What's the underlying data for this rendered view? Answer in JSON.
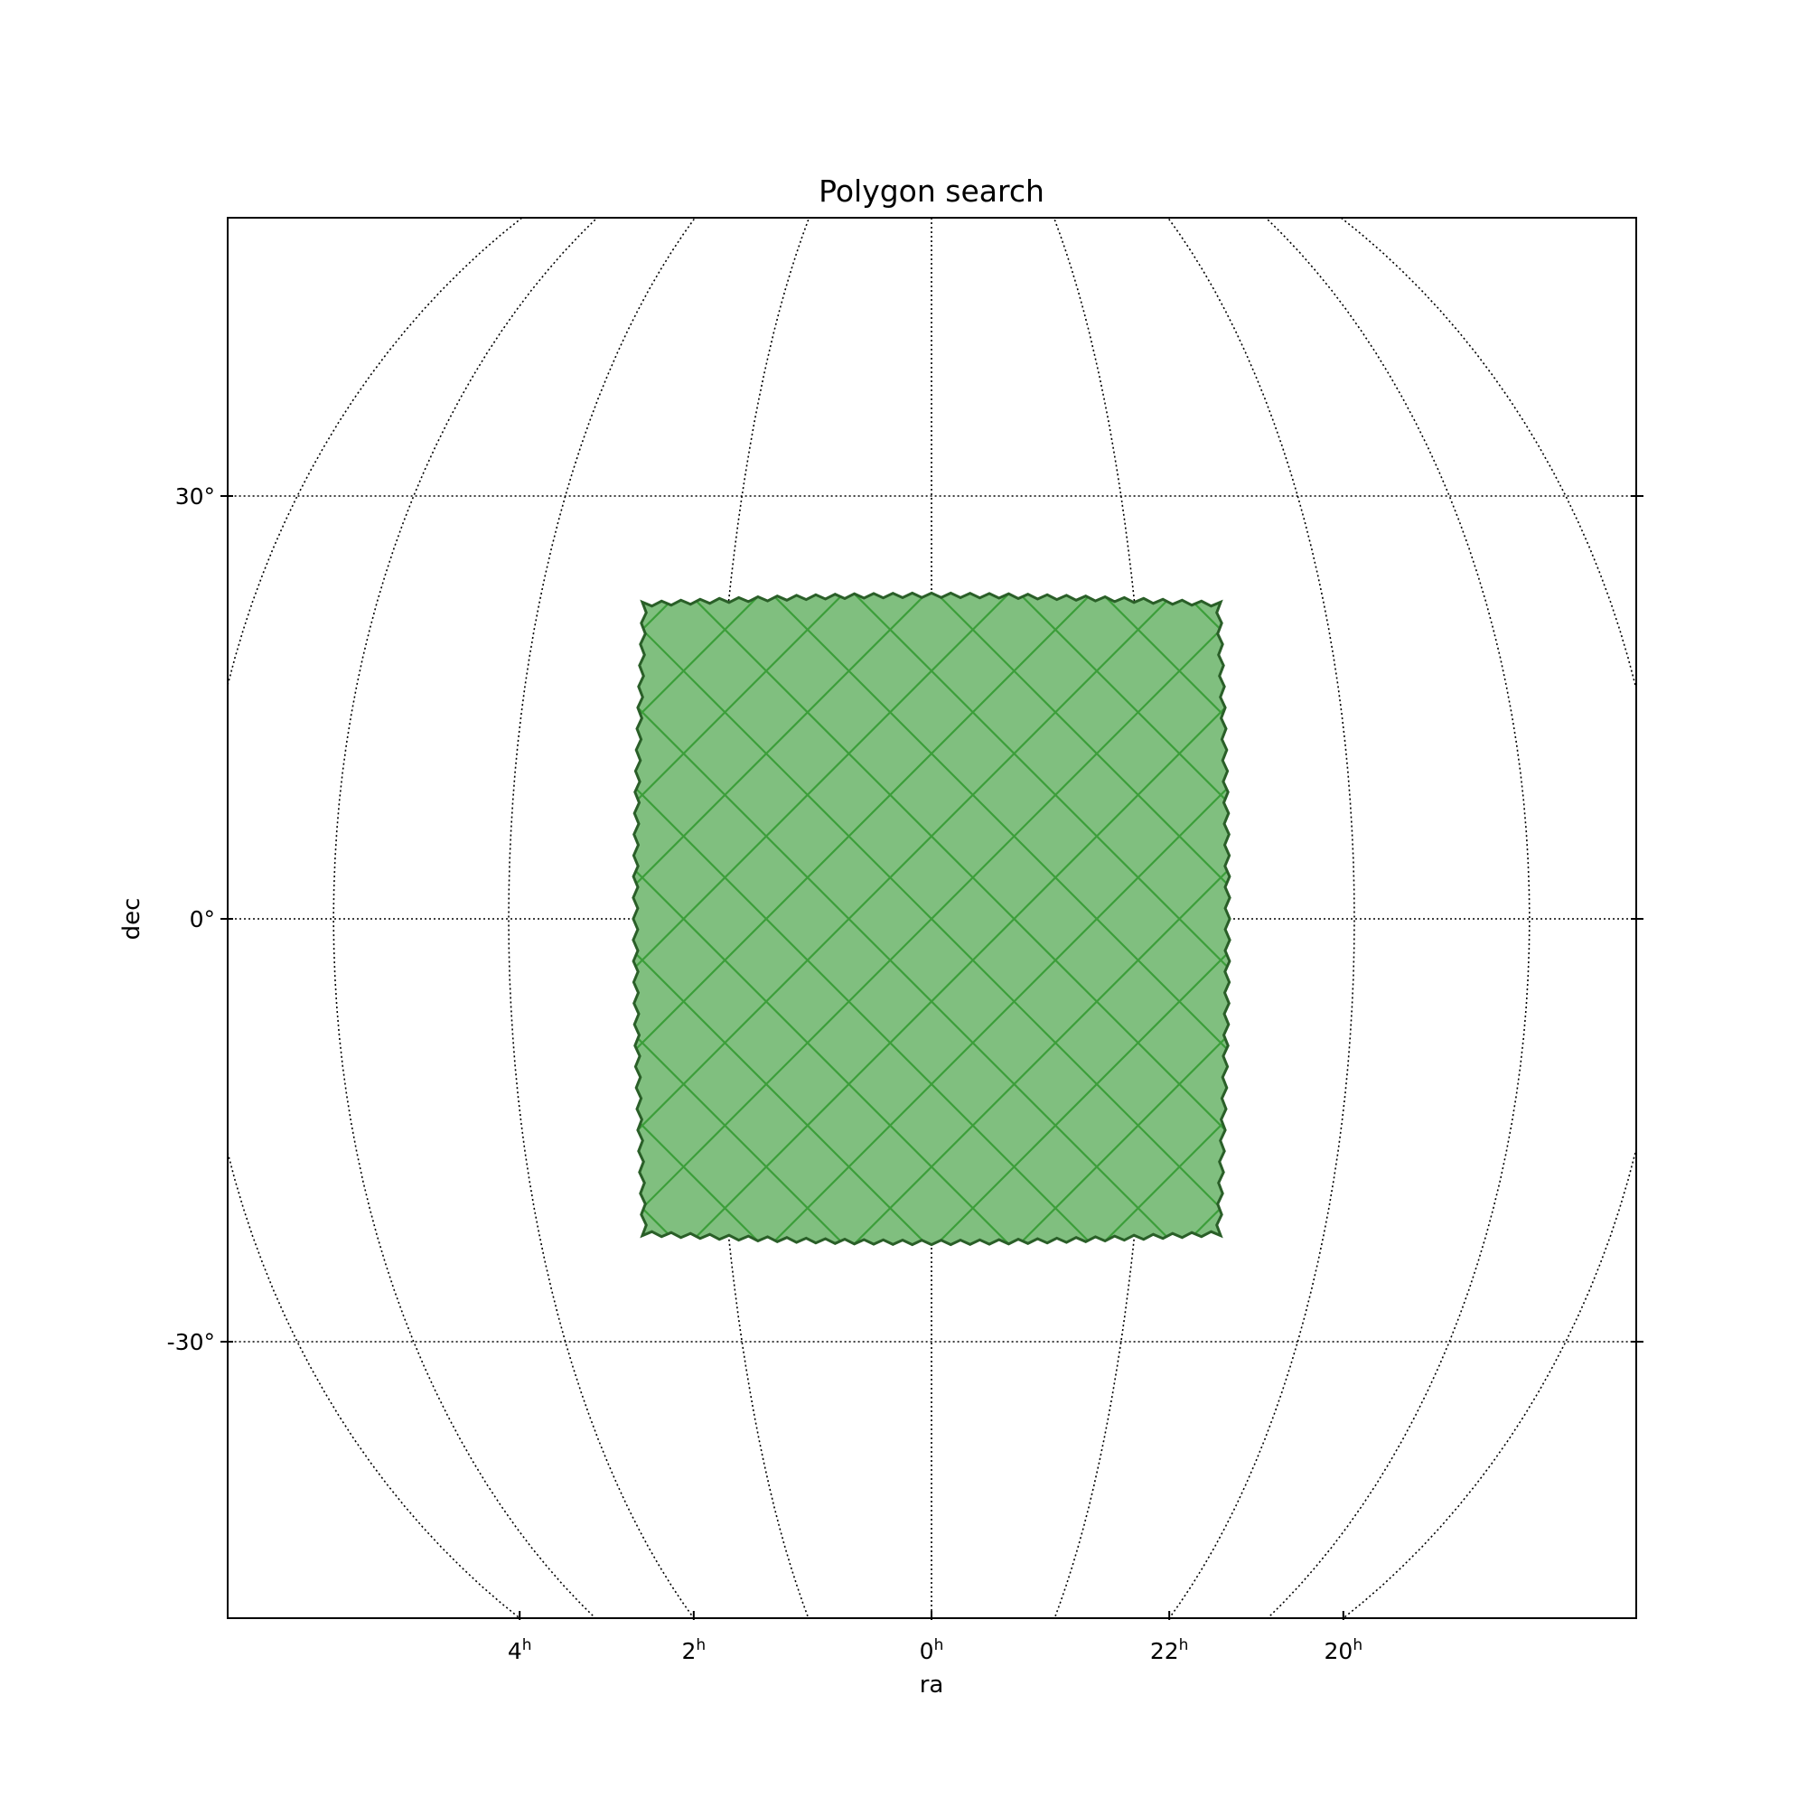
{
  "chart_data": {
    "type": "map",
    "title": "Polygon search",
    "xlabel": "ra",
    "ylabel": "dec",
    "projection": "orthographic (centered at ra 0h, dec 0°)",
    "grid": true,
    "x_ticks": [
      {
        "ra_hours": 4,
        "main": "4",
        "sup": "h"
      },
      {
        "ra_hours": 2,
        "main": "2",
        "sup": "h"
      },
      {
        "ra_hours": 0,
        "main": "0",
        "sup": "h"
      },
      {
        "ra_hours": 22,
        "main": "22",
        "sup": "h"
      },
      {
        "ra_hours": 20,
        "main": "20",
        "sup": "h"
      }
    ],
    "y_ticks": [
      {
        "dec_deg": 30,
        "label": "30°"
      },
      {
        "dec_deg": 0,
        "label": "0°"
      },
      {
        "dec_deg": -30,
        "label": "-30°"
      }
    ],
    "region": {
      "name": "polygon",
      "fill_color": "#80bf7f",
      "cell_line_color": "#3c9e3a",
      "edge_color": "#2a5f28",
      "ra_min_deg": -20,
      "ra_max_deg": 20,
      "dec_min_deg": -22,
      "dec_max_deg": 22
    }
  }
}
